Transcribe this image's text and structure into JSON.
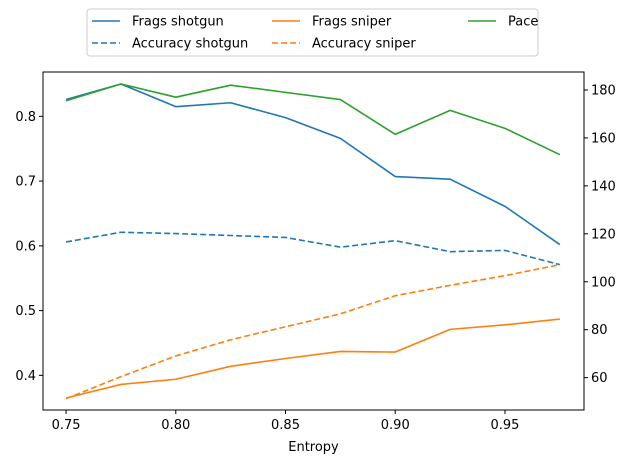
{
  "chart_data": {
    "type": "line",
    "title": "",
    "xlabel": "Entropy",
    "ylabel_left": "",
    "ylabel_right": "",
    "xlim": [
      0.7395,
      0.986
    ],
    "ylim_left": [
      0.3465,
      0.8685
    ],
    "ylim_right": [
      46.5,
      187.5
    ],
    "x_ticks": [
      0.75,
      0.8,
      0.85,
      0.9,
      0.95
    ],
    "x_tick_labels": [
      "0.75",
      "0.80",
      "0.85",
      "0.90",
      "0.95"
    ],
    "y_left_ticks": [
      0.4,
      0.5,
      0.6,
      0.7,
      0.8
    ],
    "y_left_tick_labels": [
      "0.4",
      "0.5",
      "0.6",
      "0.7",
      "0.8"
    ],
    "y_right_ticks": [
      60,
      80,
      100,
      120,
      140,
      160,
      180
    ],
    "y_right_tick_labels": [
      "60",
      "80",
      "100",
      "120",
      "140",
      "160",
      "180"
    ],
    "grid": false,
    "legend_position": "above-plot",
    "x": [
      0.75,
      0.775,
      0.8,
      0.825,
      0.85,
      0.875,
      0.9,
      0.925,
      0.95,
      0.975
    ],
    "series": [
      {
        "name": "Frags shotgun",
        "axis": "left",
        "color": "#1f77b4",
        "dash": "solid",
        "values": [
          0.826,
          0.85,
          0.815,
          0.821,
          0.798,
          0.766,
          0.707,
          0.703,
          0.661,
          0.602
        ]
      },
      {
        "name": "Accuracy shotgun",
        "axis": "left",
        "color": "#1f77b4",
        "dash": "dashed",
        "values": [
          0.606,
          0.621,
          0.619,
          0.616,
          0.613,
          0.598,
          0.608,
          0.591,
          0.593,
          0.571
        ]
      },
      {
        "name": "Frags sniper",
        "axis": "left",
        "color": "#ff7f0e",
        "dash": "solid",
        "values": [
          0.365,
          0.386,
          0.394,
          0.414,
          0.426,
          0.437,
          0.436,
          0.471,
          0.478,
          0.487
        ]
      },
      {
        "name": "Accuracy sniper",
        "axis": "left",
        "color": "#ff7f0e",
        "dash": "dashed",
        "values": [
          0.364,
          0.398,
          0.43,
          0.455,
          0.475,
          0.495,
          0.523,
          0.539,
          0.554,
          0.571
        ]
      },
      {
        "name": "Pace",
        "axis": "right",
        "color": "#2ca02c",
        "dash": "solid",
        "values": [
          175.5,
          182.5,
          177.0,
          182.0,
          179.0,
          176.0,
          161.5,
          171.5,
          164.0,
          153.0
        ]
      }
    ]
  }
}
